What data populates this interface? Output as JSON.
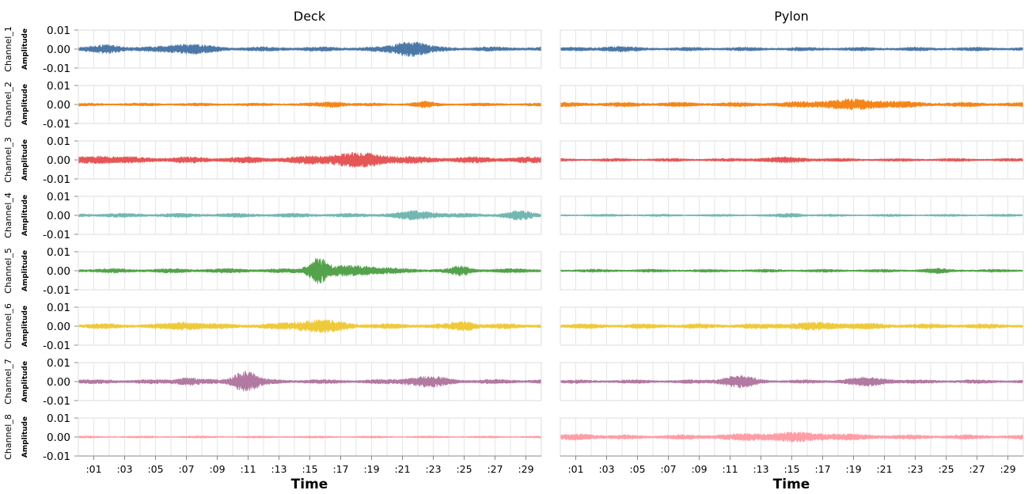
{
  "chart_data": {
    "type": "line",
    "columns": [
      "Deck",
      "Pylon"
    ],
    "rows": [
      "Channel_1",
      "Channel_2",
      "Channel_3",
      "Channel_4",
      "Channel_5",
      "Channel_6",
      "Channel_7",
      "Channel_8"
    ],
    "ylabel": "Amplitude",
    "xlabel": "Time",
    "yticks": [
      "0.01",
      "0.00",
      "-0.01"
    ],
    "ylim": [
      -0.01,
      0.01
    ],
    "xticks": [
      ":01",
      ":03",
      ":05",
      ":07",
      ":09",
      ":11",
      ":13",
      ":15",
      ":17",
      ":19",
      ":21",
      ":23",
      ":25",
      ":27",
      ":29"
    ],
    "xlim_seconds": [
      0,
      30
    ],
    "grid": true,
    "colors": [
      "#4c78a8",
      "#f58518",
      "#e45756",
      "#72b7b2",
      "#54a24b",
      "#eeca3b",
      "#b279a2",
      "#ff9da6"
    ],
    "series": [
      {
        "column": "Deck",
        "row": "Channel_1",
        "base_amplitude": 0.0013,
        "peak_amplitude": 0.005,
        "bursts": [
          {
            "t": 21.5,
            "amp": 0.0035,
            "w": 1.2
          },
          {
            "t": 7.0,
            "amp": 0.002,
            "w": 1.5
          },
          {
            "t": 2.0,
            "amp": 0.0015,
            "w": 1.0
          }
        ]
      },
      {
        "column": "Deck",
        "row": "Channel_2",
        "base_amplitude": 0.0009,
        "peak_amplitude": 0.003,
        "bursts": [
          {
            "t": 16.5,
            "amp": 0.0012,
            "w": 0.8
          },
          {
            "t": 22.5,
            "amp": 0.001,
            "w": 0.8
          }
        ]
      },
      {
        "column": "Deck",
        "row": "Channel_3",
        "base_amplitude": 0.0018,
        "peak_amplitude": 0.005,
        "bursts": [
          {
            "t": 18.0,
            "amp": 0.0025,
            "w": 2.5
          },
          {
            "t": 1.5,
            "amp": 0.0012,
            "w": 1.0
          }
        ]
      },
      {
        "column": "Deck",
        "row": "Channel_4",
        "base_amplitude": 0.0012,
        "peak_amplitude": 0.004,
        "bursts": [
          {
            "t": 22.0,
            "amp": 0.0015,
            "w": 1.5
          },
          {
            "t": 28.5,
            "amp": 0.0015,
            "w": 1.0
          }
        ]
      },
      {
        "column": "Deck",
        "row": "Channel_5",
        "base_amplitude": 0.0013,
        "peak_amplitude": 0.01,
        "bursts": [
          {
            "t": 15.5,
            "amp": 0.006,
            "w": 0.7
          },
          {
            "t": 18.0,
            "amp": 0.002,
            "w": 2.0
          },
          {
            "t": 24.8,
            "amp": 0.0018,
            "w": 0.6
          }
        ]
      },
      {
        "column": "Deck",
        "row": "Channel_6",
        "base_amplitude": 0.0015,
        "peak_amplitude": 0.005,
        "bursts": [
          {
            "t": 15.5,
            "amp": 0.0025,
            "w": 1.8
          },
          {
            "t": 7.0,
            "amp": 0.0015,
            "w": 1.0
          },
          {
            "t": 25.0,
            "amp": 0.0018,
            "w": 0.8
          }
        ]
      },
      {
        "column": "Deck",
        "row": "Channel_7",
        "base_amplitude": 0.0013,
        "peak_amplitude": 0.007,
        "bursts": [
          {
            "t": 10.8,
            "amp": 0.005,
            "w": 0.9
          },
          {
            "t": 22.5,
            "amp": 0.002,
            "w": 1.5
          },
          {
            "t": 7.0,
            "amp": 0.0015,
            "w": 0.8
          }
        ]
      },
      {
        "column": "Deck",
        "row": "Channel_8",
        "base_amplitude": 0.0006,
        "peak_amplitude": 0.002,
        "bursts": []
      },
      {
        "column": "Pylon",
        "row": "Channel_1",
        "base_amplitude": 0.0011,
        "peak_amplitude": 0.003,
        "bursts": [
          {
            "t": 3.5,
            "amp": 0.0008,
            "w": 1.0
          }
        ]
      },
      {
        "column": "Pylon",
        "row": "Channel_2",
        "base_amplitude": 0.0013,
        "peak_amplitude": 0.004,
        "bursts": [
          {
            "t": 19.0,
            "amp": 0.0018,
            "w": 3.0
          }
        ]
      },
      {
        "column": "Pylon",
        "row": "Channel_3",
        "base_amplitude": 0.0009,
        "peak_amplitude": 0.003,
        "bursts": [
          {
            "t": 14.5,
            "amp": 0.0008,
            "w": 2.0
          }
        ]
      },
      {
        "column": "Pylon",
        "row": "Channel_4",
        "base_amplitude": 0.0007,
        "peak_amplitude": 0.002,
        "bursts": [
          {
            "t": 15.0,
            "amp": 0.0008,
            "w": 0.8
          }
        ]
      },
      {
        "column": "Pylon",
        "row": "Channel_5",
        "base_amplitude": 0.0009,
        "peak_amplitude": 0.0025,
        "bursts": [
          {
            "t": 24.5,
            "amp": 0.0007,
            "w": 0.8
          }
        ]
      },
      {
        "column": "Pylon",
        "row": "Channel_6",
        "base_amplitude": 0.0014,
        "peak_amplitude": 0.004,
        "bursts": [
          {
            "t": 17.0,
            "amp": 0.001,
            "w": 3.0
          }
        ]
      },
      {
        "column": "Pylon",
        "row": "Channel_7",
        "base_amplitude": 0.0011,
        "peak_amplitude": 0.005,
        "bursts": [
          {
            "t": 11.5,
            "amp": 0.0025,
            "w": 1.2
          },
          {
            "t": 20.0,
            "amp": 0.0015,
            "w": 1.5
          }
        ]
      },
      {
        "column": "Pylon",
        "row": "Channel_8",
        "base_amplitude": 0.0013,
        "peak_amplitude": 0.004,
        "bursts": [
          {
            "t": 15.0,
            "amp": 0.0015,
            "w": 4.0
          },
          {
            "t": 1.5,
            "amp": 0.0008,
            "w": 1.0
          }
        ]
      }
    ]
  }
}
